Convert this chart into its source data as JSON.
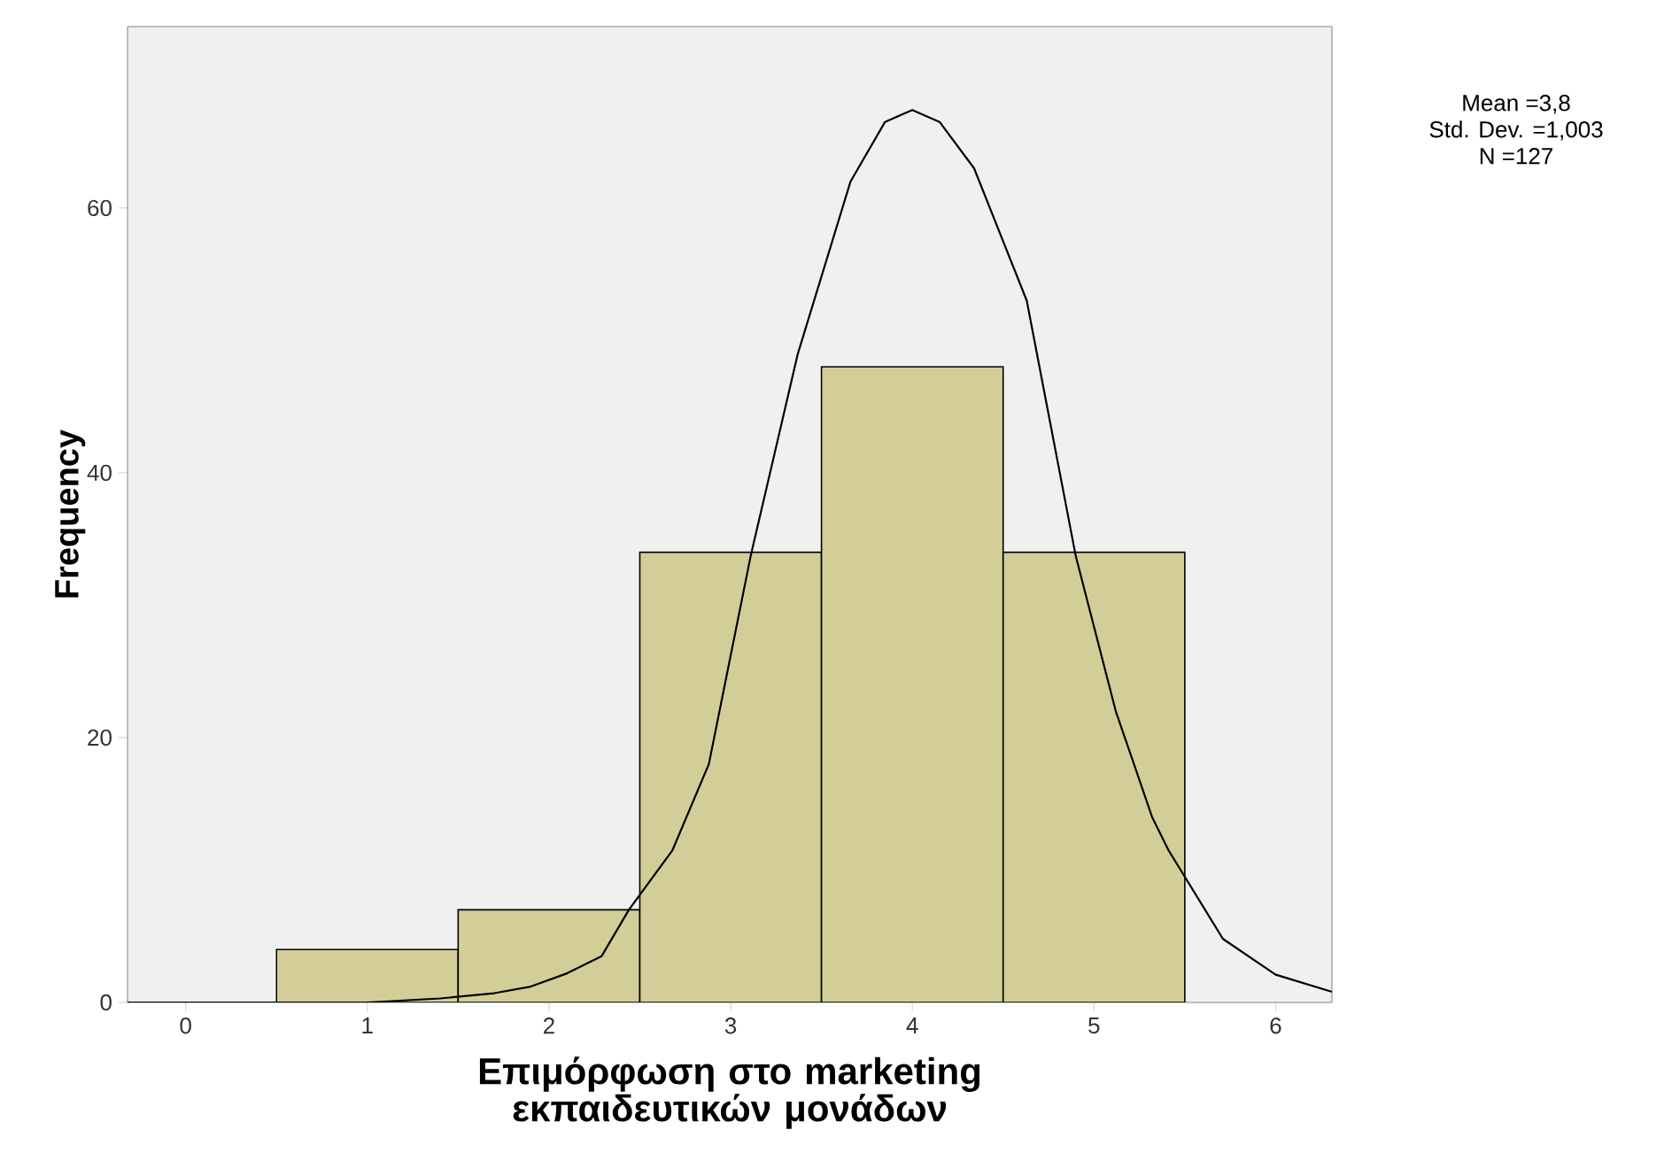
{
  "chart_data": {
    "type": "histogram",
    "xlabel": "Επιμόρφωση στο marketing εκπαιδευτικών μονάδων",
    "ylabel": "Frequency",
    "annotations": [
      "Mean =3,8",
      "Std. Dev. =1,003",
      "N =127"
    ],
    "bins": [
      0.5,
      1.5,
      2.5,
      3.5,
      4.5,
      5.5
    ],
    "series": [
      {
        "color": "#d3ce98",
        "values": [
          4,
          7,
          34,
          48,
          34
        ]
      },
      {
        "type": "line",
        "color": "#000000",
        "x": [
          -0.32,
          1.0,
          1.4,
          1.7,
          1.9,
          2.1,
          2.29,
          2.44,
          2.68,
          2.88,
          3.11,
          3.37,
          3.66,
          3.85,
          4.0,
          4.15,
          4.34,
          4.63,
          4.9,
          5.12,
          5.32,
          5.41,
          5.71,
          6.0,
          6.31
        ],
        "values": [
          0,
          0,
          0.3,
          0.7,
          1.2,
          2.2,
          3.5,
          7,
          11.5,
          18,
          33.7,
          49,
          62,
          66.5,
          67.4,
          66.5,
          63,
          53,
          33.7,
          22,
          14,
          11.5,
          4.8,
          2.1,
          0.8
        ]
      }
    ],
    "xlim": [
      -0.32,
      6.31
    ],
    "ylim": [
      0,
      73.7
    ],
    "xticks": [
      0,
      1,
      2,
      3,
      4,
      5,
      6
    ],
    "yticks": [
      0,
      20,
      40,
      60
    ],
    "grid": false
  }
}
